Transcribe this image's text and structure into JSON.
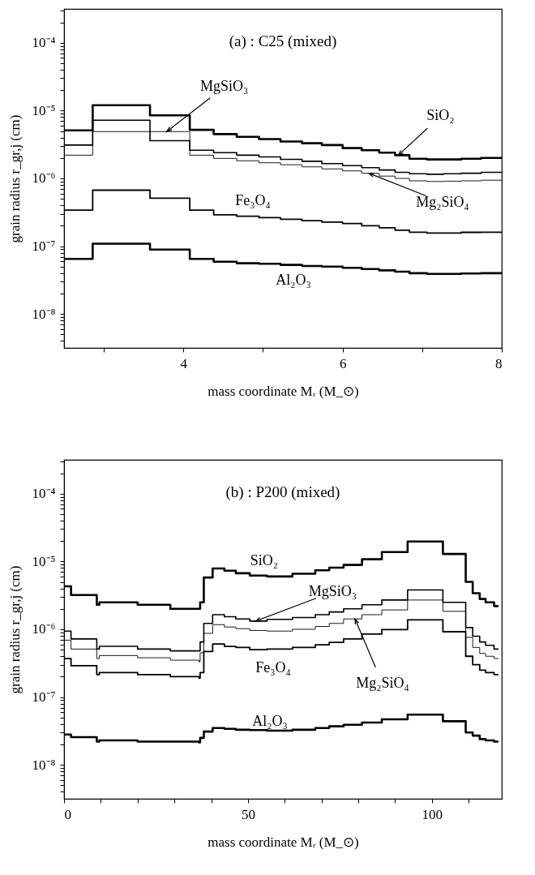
{
  "chart_data": [
    {
      "type": "step",
      "title": "(a) : C25 (mixed)",
      "xlabel": "mass coordinate Mᵣ (M_⊙)",
      "ylabel": "grain radius r_gr,j (cm)",
      "x": [
        2.5,
        2.86,
        3.58,
        4.08,
        4.38,
        4.67,
        4.95,
        5.22,
        5.49,
        5.74,
        6.0,
        6.24,
        6.46,
        6.66,
        6.84,
        7.06,
        7.27,
        7.49,
        7.74,
        8
      ],
      "series": [
        {
          "color": "#000000",
          "values": [
            5.1e-06,
            1.2e-05,
            8.5e-06,
            5.2e-06,
            4.5e-06,
            4.1e-06,
            3.8e-06,
            3.5e-06,
            3.3e-06,
            3.1e-06,
            2.8e-06,
            2.6e-06,
            2.4e-06,
            2.2e-06,
            1.95e-06,
            1.9e-06,
            1.9e-06,
            1.95e-06,
            2e-06,
            2e-06
          ]
        },
        {
          "color": "#000000",
          "values": [
            3.1e-06,
            7.2e-06,
            3.6e-06,
            2.6e-06,
            2.4e-06,
            2.2e-06,
            2.07e-06,
            1.91e-06,
            1.79e-06,
            1.65e-06,
            1.54e-06,
            1.44e-06,
            1.33e-06,
            1.23e-06,
            1.17e-06,
            1.15e-06,
            1.17e-06,
            1.19e-06,
            1.23e-06,
            1.23e-06
          ]
        },
        {
          "color": "#000000",
          "values": [
            2.2e-06,
            4.9e-06,
            4.9e-06,
            2.2e-06,
            1.97e-06,
            1.82e-06,
            1.7e-06,
            1.59e-06,
            1.48e-06,
            1.38e-06,
            1.29e-06,
            1.19e-06,
            1.08e-06,
            1e-06,
            9.2e-07,
            9e-07,
            9.1e-07,
            9.2e-07,
            9.4e-07,
            9.4e-07
          ]
        },
        {
          "color": "#000000",
          "values": [
            3.4e-07,
            6.7e-07,
            5.1e-07,
            3.4e-07,
            2.9e-07,
            2.76e-07,
            2.63e-07,
            2.5e-07,
            2.38e-07,
            2.27e-07,
            2.16e-07,
            2e-07,
            1.87e-07,
            1.72e-07,
            1.61e-07,
            1.56e-07,
            1.56e-07,
            1.6e-07,
            1.61e-07,
            1.61e-07
          ]
        },
        {
          "color": "#000000",
          "values": [
            6.5e-08,
            1.09e-07,
            8.9e-08,
            6.5e-08,
            5.9e-08,
            5.6e-08,
            5.5e-08,
            5.3e-08,
            5.1e-08,
            5e-08,
            4.8e-08,
            4.6e-08,
            4.4e-08,
            4.2e-08,
            4e-08,
            3.9e-08,
            3.9e-08,
            3.95e-08,
            4e-08,
            4e-08
          ]
        }
      ],
      "xlim": [
        2.5,
        8
      ],
      "ylim": [
        3.16e-09,
        0.000316
      ],
      "xticks": [
        {
          "value": 3,
          "label": null
        },
        4,
        {
          "value": 5,
          "label": null
        },
        6,
        {
          "value": 7,
          "label": null
        },
        8
      ],
      "yticks": [
        {
          "value": 4e-09,
          "label": null
        },
        {
          "value": 5e-09,
          "label": null
        },
        {
          "value": 6e-09,
          "label": null
        },
        {
          "value": 7e-09,
          "label": null
        },
        {
          "value": 8e-09,
          "label": null
        },
        {
          "value": 9e-09,
          "label": null
        },
        {
          "value": 1e-08,
          "label": "10⁻⁸"
        },
        {
          "value": 2e-08,
          "label": null
        },
        {
          "value": 3e-08,
          "label": null
        },
        {
          "value": 4e-08,
          "label": null
        },
        {
          "value": 5e-08,
          "label": null
        },
        {
          "value": 6e-08,
          "label": null
        },
        {
          "value": 7e-08,
          "label": null
        },
        {
          "value": 8e-08,
          "label": null
        },
        {
          "value": 9e-08,
          "label": null
        },
        {
          "value": 1e-07,
          "label": "10⁻⁷"
        },
        {
          "value": 2e-07,
          "label": null
        },
        {
          "value": 3e-07,
          "label": null
        },
        {
          "value": 4e-07,
          "label": null
        },
        {
          "value": 5e-07,
          "label": null
        },
        {
          "value": 6e-07,
          "label": null
        },
        {
          "value": 7e-07,
          "label": null
        },
        {
          "value": 8e-07,
          "label": null
        },
        {
          "value": 9e-07,
          "label": null
        },
        {
          "value": 1e-06,
          "label": "10⁻⁶"
        },
        {
          "value": 2e-06,
          "label": null
        },
        {
          "value": 3e-06,
          "label": null
        },
        {
          "value": 4e-06,
          "label": null
        },
        {
          "value": 5e-06,
          "label": null
        },
        {
          "value": 6e-06,
          "label": null
        },
        {
          "value": 7e-06,
          "label": null
        },
        {
          "value": 8e-06,
          "label": null
        },
        {
          "value": 9e-06,
          "label": null
        },
        {
          "value": 1e-05,
          "label": "10⁻⁵"
        },
        {
          "value": 2e-05,
          "label": null
        },
        {
          "value": 3e-05,
          "label": null
        },
        {
          "value": 4e-05,
          "label": null
        },
        {
          "value": 5e-05,
          "label": null
        },
        {
          "value": 6e-05,
          "label": null
        },
        {
          "value": 7e-05,
          "label": null
        },
        {
          "value": 8e-05,
          "label": null
        },
        {
          "value": 9e-05,
          "label": null
        },
        {
          "value": 0.0001,
          "label": "10⁻⁴"
        },
        {
          "value": 0.0002,
          "label": null
        },
        {
          "value": 0.0003,
          "label": null
        }
      ],
      "log": "y",
      "grid": false,
      "annotations": [
        {
          "text": "MgSiO₃",
          "x": 3.79,
          "y": 4.9e-06
        },
        {
          "text": "SiO₂",
          "x": 6.7,
          "y": 2.2e-06
        },
        {
          "text": "Mg₂SiO₄",
          "x": 6.33,
          "y": 1.19e-06
        },
        "Fe₃O₄",
        "Al₂O₃"
      ]
    },
    {
      "type": "step",
      "title": "(b) : P200 (mixed)",
      "xlabel": "mass coordinate Mᵣ (M_⊙)",
      "ylabel": "grain radius r_gr,j (cm)",
      "x": [
        0,
        1.9,
        8.9,
        9.6,
        20,
        28.9,
        36.7,
        37.0,
        38,
        40.4,
        43.6,
        46.7,
        50.5,
        55.2,
        62.1,
        68.3,
        72.1,
        76.0,
        81.0,
        86.4,
        93.4,
        103.0,
        109.2,
        111.1,
        113.0,
        114.6,
        116.9,
        118.1
      ],
      "series": [
        {
          "color": "#000000",
          "values": [
            4.3e-06,
            3.2e-06,
            2.3e-06,
            2.5e-06,
            2.3e-06,
            2e-06,
            2e-06,
            2.5e-06,
            5.8e-06,
            7.9e-06,
            7.3e-06,
            6.7e-06,
            6.2e-06,
            6e-06,
            6.6e-06,
            7.4e-06,
            8.1e-06,
            8.9e-06,
            1.08e-05,
            1.38e-05,
            1.97e-05,
            1.29e-05,
            5e-06,
            3.4e-06,
            2.8e-06,
            2.5e-06,
            2.2e-06,
            2.2e-06
          ]
        },
        {
          "color": "#000000",
          "values": [
            9.4e-07,
            7.2e-07,
            5.1e-07,
            5.6e-07,
            5.1e-07,
            4.8e-07,
            4.8e-07,
            6.5e-07,
            1.22e-06,
            1.64e-06,
            1.53e-06,
            1.42e-06,
            1.32e-06,
            1.4e-06,
            1.49e-06,
            1.64e-06,
            1.8e-06,
            2e-06,
            2.3e-06,
            2.7e-06,
            3.8e-06,
            2.5e-06,
            1.06e-06,
            7.9e-07,
            6.5e-07,
            5.8e-07,
            5.1e-07,
            5.1e-07
          ]
        },
        {
          "color": "#000000",
          "values": [
            6.9e-07,
            5.1e-07,
            3.7e-07,
            4.1e-07,
            3.8e-07,
            3.5e-07,
            3.3e-07,
            4.5e-07,
            8.7e-07,
            1.17e-06,
            1.08e-06,
            1.02e-06,
            9.6e-07,
            9.4e-07,
            1e-06,
            1.1e-06,
            1.22e-06,
            1.42e-06,
            1.64e-06,
            1.93e-06,
            2.7e-06,
            1.84e-06,
            7.6e-07,
            5.4e-07,
            4.4e-07,
            4e-07,
            3.7e-07,
            3.7e-07
          ]
        },
        {
          "color": "#000000",
          "values": [
            3.7e-07,
            2.9e-07,
            2.15e-07,
            2.3e-07,
            2.15e-07,
            2e-07,
            1.9e-07,
            2.3e-07,
            4.7e-07,
            6.05e-07,
            5.6e-07,
            5.4e-07,
            5e-07,
            5.1e-07,
            5.4e-07,
            5.9e-07,
            6.4e-07,
            7.2e-07,
            8.5e-07,
            9.9e-07,
            1.38e-06,
            9.2e-07,
            4e-07,
            3e-07,
            2.5e-07,
            2.3e-07,
            2.15e-07,
            2.15e-07
          ]
        },
        {
          "color": "#000000",
          "values": [
            2.8e-08,
            2.56e-08,
            2.2e-08,
            2.3e-08,
            2.2e-08,
            2.2e-08,
            2.15e-08,
            2.5e-08,
            3.1e-08,
            3.5e-08,
            3.4e-08,
            3.3e-08,
            3.26e-08,
            3.2e-08,
            3.3e-08,
            3.5e-08,
            3.7e-08,
            3.9e-08,
            4.2e-08,
            4.7e-08,
            5.5e-08,
            4.4e-08,
            3e-08,
            2.7e-08,
            2.4e-08,
            2.3e-08,
            2.2e-08,
            2.2e-08
          ]
        }
      ],
      "xlim": [
        0,
        119
      ],
      "ylim": [
        3.16e-09,
        0.000316
      ],
      "xticks": [
        0,
        {
          "value": 10,
          "label": null
        },
        {
          "value": 20,
          "label": null
        },
        {
          "value": 30,
          "label": null
        },
        {
          "value": 40,
          "label": null
        },
        50,
        {
          "value": 60,
          "label": null
        },
        {
          "value": 70,
          "label": null
        },
        {
          "value": 80,
          "label": null
        },
        {
          "value": 90,
          "label": null
        },
        100,
        {
          "value": 110,
          "label": null
        }
      ],
      "yticks": [
        {
          "value": 4e-09,
          "label": null
        },
        {
          "value": 5e-09,
          "label": null
        },
        {
          "value": 6e-09,
          "label": null
        },
        {
          "value": 7e-09,
          "label": null
        },
        {
          "value": 8e-09,
          "label": null
        },
        {
          "value": 9e-09,
          "label": null
        },
        {
          "value": 1e-08,
          "label": "10⁻⁸"
        },
        {
          "value": 2e-08,
          "label": null
        },
        {
          "value": 3e-08,
          "label": null
        },
        {
          "value": 4e-08,
          "label": null
        },
        {
          "value": 5e-08,
          "label": null
        },
        {
          "value": 6e-08,
          "label": null
        },
        {
          "value": 7e-08,
          "label": null
        },
        {
          "value": 8e-08,
          "label": null
        },
        {
          "value": 9e-08,
          "label": null
        },
        {
          "value": 1e-07,
          "label": "10⁻⁷"
        },
        {
          "value": 2e-07,
          "label": null
        },
        {
          "value": 3e-07,
          "label": null
        },
        {
          "value": 4e-07,
          "label": null
        },
        {
          "value": 5e-07,
          "label": null
        },
        {
          "value": 6e-07,
          "label": null
        },
        {
          "value": 7e-07,
          "label": null
        },
        {
          "value": 8e-07,
          "label": null
        },
        {
          "value": 9e-07,
          "label": null
        },
        {
          "value": 1e-06,
          "label": "10⁻⁶"
        },
        {
          "value": 2e-06,
          "label": null
        },
        {
          "value": 3e-06,
          "label": null
        },
        {
          "value": 4e-06,
          "label": null
        },
        {
          "value": 5e-06,
          "label": null
        },
        {
          "value": 6e-06,
          "label": null
        },
        {
          "value": 7e-06,
          "label": null
        },
        {
          "value": 8e-06,
          "label": null
        },
        {
          "value": 9e-06,
          "label": null
        },
        {
          "value": 1e-05,
          "label": "10⁻⁵"
        },
        {
          "value": 2e-05,
          "label": null
        },
        {
          "value": 3e-05,
          "label": null
        },
        {
          "value": 4e-05,
          "label": null
        },
        {
          "value": 5e-05,
          "label": null
        },
        {
          "value": 6e-05,
          "label": null
        },
        {
          "value": 7e-05,
          "label": null
        },
        {
          "value": 8e-05,
          "label": null
        },
        {
          "value": 9e-05,
          "label": null
        },
        {
          "value": 0.0001,
          "label": "10⁻⁴"
        },
        {
          "value": 0.0002,
          "label": null
        },
        {
          "value": 0.0003,
          "label": null
        }
      ],
      "log": "y",
      "grid": false,
      "annotations": [
        "SiO₂",
        {
          "text": "MgSiO₃",
          "x": 52.1,
          "y": 1.32e-06
        },
        {
          "text": "Mg₂SiO₄",
          "x": 79.1,
          "y": 1.42e-06
        },
        "Fe₃O₄",
        "Al₂O₃"
      ]
    }
  ]
}
